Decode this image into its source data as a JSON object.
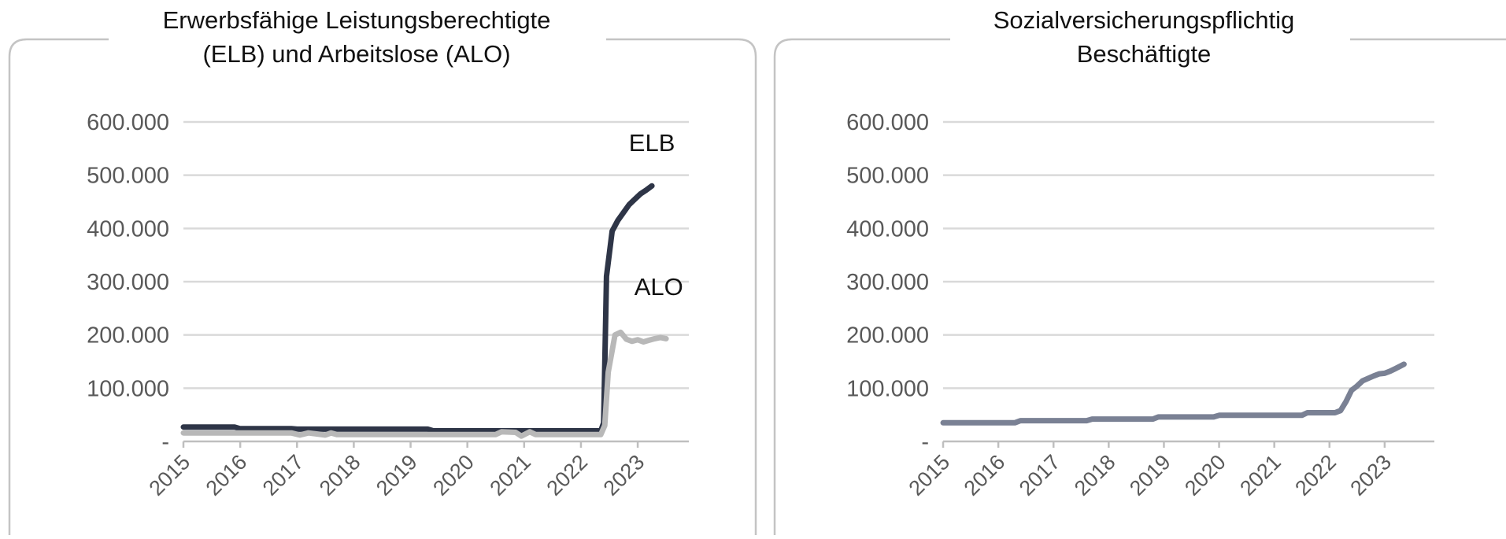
{
  "chart_data": [
    {
      "type": "line",
      "title_lines": [
        "Erwerbsfähige Leistungsberechtigte",
        "(ELB) und Arbeitslose (ALO)"
      ],
      "ylim": [
        0,
        600000
      ],
      "yticks": [
        0,
        100000,
        200000,
        300000,
        400000,
        500000,
        600000
      ],
      "ytick_labels": [
        "-",
        "100.000",
        "200.000",
        "300.000",
        "400.000",
        "500.000",
        "600.000"
      ],
      "xlim": [
        2015,
        2023.9
      ],
      "xticks": [
        2015,
        2016,
        2017,
        2018,
        2019,
        2020,
        2021,
        2022,
        2023
      ],
      "xtick_labels": [
        "2015",
        "2016",
        "2017",
        "2018",
        "2019",
        "2020",
        "2021",
        "2022",
        "2023"
      ],
      "grid": true,
      "series": [
        {
          "name": "ELB",
          "color": "#2e3547",
          "x": [
            2015.0,
            2015.9,
            2016.0,
            2016.9,
            2017.0,
            2019.3,
            2019.4,
            2022.35,
            2022.4,
            2022.45,
            2022.55,
            2022.65,
            2022.85,
            2022.95,
            2023.05,
            2023.15,
            2023.25
          ],
          "y": [
            27000,
            27000,
            24000,
            24000,
            23000,
            23000,
            20000,
            20000,
            35000,
            310000,
            395000,
            415000,
            445000,
            455000,
            465000,
            472000,
            480000
          ]
        },
        {
          "name": "ALO",
          "color": "#b8b8b8",
          "x": [
            2015.0,
            2016.9,
            2017.05,
            2017.2,
            2017.5,
            2017.6,
            2017.7,
            2020.5,
            2020.6,
            2020.85,
            2020.95,
            2021.1,
            2021.2,
            2022.35,
            2022.42,
            2022.48,
            2022.6,
            2022.7,
            2022.8,
            2022.9,
            2023.0,
            2023.1,
            2023.2,
            2023.3,
            2023.4,
            2023.5
          ],
          "y": [
            16000,
            16000,
            12000,
            16000,
            12000,
            16000,
            13000,
            13000,
            18000,
            17000,
            10000,
            18000,
            13000,
            13000,
            30000,
            130000,
            200000,
            205000,
            192000,
            188000,
            191000,
            187000,
            190000,
            193000,
            195000,
            193000
          ]
        }
      ],
      "annotations": [
        {
          "text": "ELB",
          "x": 2023.25,
          "y": 545000
        },
        {
          "text": "ALO",
          "x": 2023.37,
          "y": 275000
        }
      ]
    },
    {
      "type": "line",
      "title_lines": [
        "Sozialversicherungspflichtig",
        "Beschäftigte"
      ],
      "ylim": [
        0,
        600000
      ],
      "yticks": [
        0,
        100000,
        200000,
        300000,
        400000,
        500000,
        600000
      ],
      "ytick_labels": [
        "-",
        "100.000",
        "200.000",
        "300.000",
        "400.000",
        "500.000",
        "600.000"
      ],
      "xlim": [
        2015,
        2023.9
      ],
      "xticks": [
        2015,
        2016,
        2017,
        2018,
        2019,
        2020,
        2021,
        2022,
        2023
      ],
      "xtick_labels": [
        "2015",
        "2016",
        "2017",
        "2018",
        "2019",
        "2020",
        "2021",
        "2022",
        "2023"
      ],
      "grid": true,
      "series": [
        {
          "name": "",
          "color": "#7a8194",
          "x": [
            2015.0,
            2016.3,
            2016.4,
            2017.6,
            2017.7,
            2018.8,
            2018.9,
            2019.9,
            2020.0,
            2021.5,
            2021.6,
            2022.1,
            2022.2,
            2022.3,
            2022.4,
            2022.5,
            2022.6,
            2022.8,
            2022.9,
            2023.0,
            2023.1,
            2023.2,
            2023.35
          ],
          "y": [
            35000,
            35000,
            39000,
            39000,
            42000,
            42000,
            46000,
            46000,
            49000,
            49000,
            54000,
            54000,
            58000,
            75000,
            96000,
            104000,
            114000,
            123000,
            127000,
            128000,
            132000,
            137000,
            145000
          ]
        }
      ],
      "annotations": []
    }
  ]
}
